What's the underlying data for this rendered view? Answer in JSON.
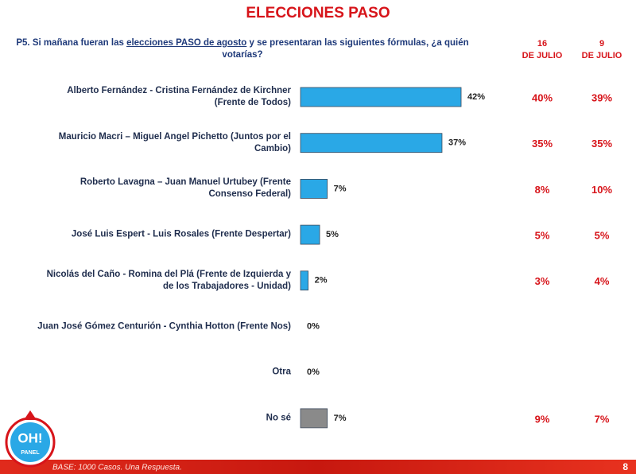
{
  "chart_data": {
    "type": "bar",
    "orientation": "horizontal",
    "title": "ELECCIONES PASO",
    "question": [
      "P5. Si mañana fueran las ",
      "elecciones PASO de agosto",
      " y se presentaran las siguientes fórmulas, ¿a quién votarías?"
    ],
    "categories": [
      "Alberto Fernández - Cristina Fernández de Kirchner (Frente de Todos)",
      "Mauricio Macri – Miguel Angel Pichetto (Juntos por el Cambio)",
      "Roberto Lavagna – Juan Manuel Urtubey (Frente Consenso Federal)",
      "José Luis Espert - Luis Rosales (Frente Despertar)",
      "Nicolás del Caño - Romina del Plá (Frente de Izquierda y de los Trabajadores - Unidad)",
      "Juan José Gómez Centurión - Cynthia Hotton (Frente Nos)",
      "Otra",
      "No sé"
    ],
    "values": [
      42,
      37,
      7,
      5,
      2,
      0,
      0,
      7
    ],
    "value_labels": [
      "42%",
      "37%",
      "7%",
      "5%",
      "2%",
      "0%",
      "0%",
      "7%"
    ],
    "colors": [
      "#2aa8e6",
      "#2aa8e6",
      "#2aa8e6",
      "#2aa8e6",
      "#2aa8e6",
      "#2aa8e6",
      "#2aa8e6",
      "#8a8a8a"
    ],
    "xlim": [
      0,
      100
    ],
    "comparisons": [
      {
        "header": [
          "16",
          "DE JULIO"
        ],
        "values": [
          40,
          35,
          8,
          5,
          3,
          null,
          null,
          9
        ],
        "value_labels": [
          "40%",
          "35%",
          "8%",
          "5%",
          "3%",
          null,
          null,
          "9%"
        ]
      },
      {
        "header": [
          "9",
          "DE JULIO"
        ],
        "values": [
          39,
          35,
          10,
          5,
          4,
          null,
          null,
          7
        ],
        "value_labels": [
          "39%",
          "35%",
          "10%",
          "5%",
          "4%",
          null,
          null,
          "7%"
        ]
      }
    ]
  },
  "footer": {
    "base": "BASE: 1000 Casos. Una Respuesta.",
    "page": 8,
    "logo": [
      "OH!",
      "PANEL"
    ]
  }
}
